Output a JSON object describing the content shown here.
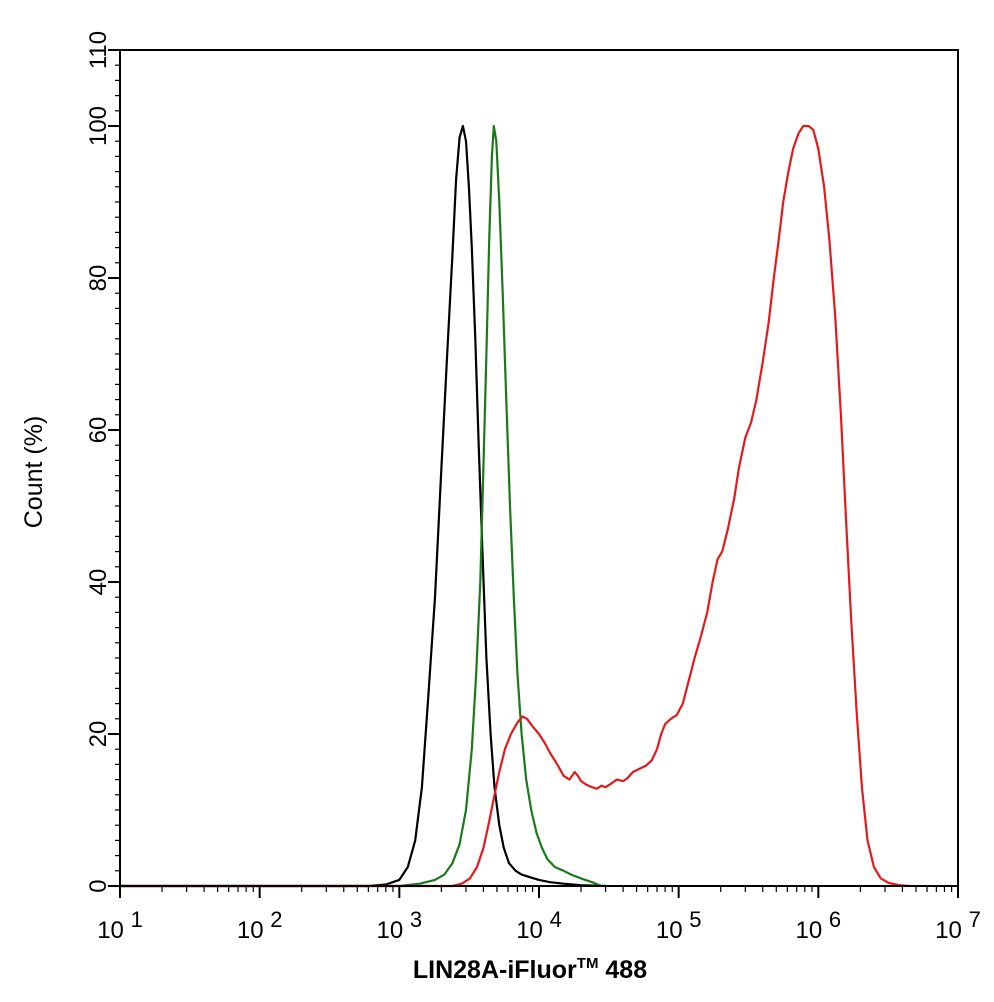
{
  "chart_data": {
    "type": "line",
    "xlabel_main": "LIN28A-iFluor",
    "xlabel_tm": "TM",
    "xlabel_suffix": " 488",
    "ylabel": "Count  (%)",
    "xscale": "log",
    "xlim": [
      10,
      10000000
    ],
    "ylim": [
      0,
      110
    ],
    "y_ticks": [
      0,
      20,
      40,
      60,
      80,
      100,
      110
    ],
    "x_ticks": [
      {
        "base": "10",
        "exp": "1",
        "value": 10
      },
      {
        "base": "10",
        "exp": "2",
        "value": 100
      },
      {
        "base": "10",
        "exp": "3",
        "value": 1000
      },
      {
        "base": "10",
        "exp": "4",
        "value": 10000
      },
      {
        "base": "10",
        "exp": "5",
        "value": 100000
      },
      {
        "base": "10",
        "exp": "6",
        "value": 1000000
      },
      {
        "base": "10",
        "exp": "7",
        "value": 10000000
      }
    ],
    "grid": false,
    "legend": "none",
    "series": [
      {
        "color": "#000000",
        "points": [
          [
            10,
            0
          ],
          [
            600,
            0
          ],
          [
            800,
            0.2
          ],
          [
            1000,
            0.8
          ],
          [
            1150,
            2.5
          ],
          [
            1300,
            6
          ],
          [
            1450,
            13
          ],
          [
            1600,
            24
          ],
          [
            1800,
            38
          ],
          [
            2000,
            55
          ],
          [
            2200,
            70
          ],
          [
            2400,
            83
          ],
          [
            2550,
            93
          ],
          [
            2700,
            98.5
          ],
          [
            2850,
            100
          ],
          [
            3000,
            98
          ],
          [
            3150,
            92
          ],
          [
            3300,
            84
          ],
          [
            3500,
            72
          ],
          [
            3700,
            58
          ],
          [
            3950,
            43
          ],
          [
            4200,
            30
          ],
          [
            4500,
            20
          ],
          [
            4800,
            13
          ],
          [
            5200,
            8
          ],
          [
            5600,
            5
          ],
          [
            6100,
            3
          ],
          [
            6800,
            2
          ],
          [
            7500,
            1.5
          ],
          [
            8500,
            1.2
          ],
          [
            10000,
            0.8
          ],
          [
            12000,
            0.5
          ],
          [
            15000,
            0.3
          ],
          [
            20000,
            0.1
          ],
          [
            30000,
            0
          ]
        ]
      },
      {
        "color": "#1a7a1a",
        "points": [
          [
            10,
            0
          ],
          [
            1000,
            0
          ],
          [
            1400,
            0.3
          ],
          [
            1800,
            0.8
          ],
          [
            2100,
            1.5
          ],
          [
            2400,
            3
          ],
          [
            2700,
            5.5
          ],
          [
            3000,
            10
          ],
          [
            3300,
            18
          ],
          [
            3550,
            28
          ],
          [
            3800,
            40
          ],
          [
            4000,
            55
          ],
          [
            4200,
            70
          ],
          [
            4400,
            85
          ],
          [
            4600,
            96
          ],
          [
            4750,
            100
          ],
          [
            4950,
            98
          ],
          [
            5200,
            90
          ],
          [
            5500,
            78
          ],
          [
            5800,
            65
          ],
          [
            6200,
            50
          ],
          [
            6600,
            38
          ],
          [
            7000,
            28
          ],
          [
            7500,
            20
          ],
          [
            8100,
            14
          ],
          [
            8800,
            10
          ],
          [
            9600,
            7
          ],
          [
            10500,
            5
          ],
          [
            11500,
            3.5
          ],
          [
            13000,
            2.5
          ],
          [
            15000,
            2
          ],
          [
            17000,
            1.5
          ],
          [
            20000,
            1
          ],
          [
            24000,
            0.5
          ],
          [
            28000,
            0
          ]
        ]
      },
      {
        "color": "#e31a1c",
        "points": [
          [
            10,
            0
          ],
          [
            2400,
            0
          ],
          [
            2800,
            0.3
          ],
          [
            3200,
            1
          ],
          [
            3600,
            2.5
          ],
          [
            4000,
            5
          ],
          [
            4400,
            8.5
          ],
          [
            4800,
            12
          ],
          [
            5200,
            15
          ],
          [
            5700,
            18
          ],
          [
            6300,
            20
          ],
          [
            7000,
            21.5
          ],
          [
            7600,
            22.3
          ],
          [
            8200,
            22
          ],
          [
            9000,
            21
          ],
          [
            10000,
            20
          ],
          [
            11000,
            18.8
          ],
          [
            12000,
            17.5
          ],
          [
            13000,
            16.5
          ],
          [
            14000,
            15.5
          ],
          [
            15000,
            14.5
          ],
          [
            16500,
            14
          ],
          [
            18000,
            15
          ],
          [
            19000,
            14.5
          ],
          [
            20000,
            13.8
          ],
          [
            22000,
            13.3
          ],
          [
            24000,
            13
          ],
          [
            26000,
            12.8
          ],
          [
            28000,
            13.2
          ],
          [
            30000,
            13
          ],
          [
            33000,
            13.5
          ],
          [
            36000,
            14
          ],
          [
            40000,
            13.8
          ],
          [
            43000,
            14.2
          ],
          [
            47000,
            15
          ],
          [
            52000,
            15.4
          ],
          [
            58000,
            15.8
          ],
          [
            64000,
            16.5
          ],
          [
            70000,
            18
          ],
          [
            75000,
            20
          ],
          [
            80000,
            21.3
          ],
          [
            88000,
            22
          ],
          [
            97000,
            22.5
          ],
          [
            107000,
            24
          ],
          [
            118000,
            27
          ],
          [
            130000,
            30
          ],
          [
            145000,
            33
          ],
          [
            160000,
            36
          ],
          [
            175000,
            40
          ],
          [
            190000,
            43
          ],
          [
            205000,
            44
          ],
          [
            225000,
            47
          ],
          [
            250000,
            51
          ],
          [
            270000,
            55
          ],
          [
            300000,
            59
          ],
          [
            330000,
            61
          ],
          [
            360000,
            64
          ],
          [
            400000,
            69
          ],
          [
            440000,
            74
          ],
          [
            480000,
            80
          ],
          [
            520000,
            85
          ],
          [
            560000,
            90
          ],
          [
            610000,
            94
          ],
          [
            660000,
            97
          ],
          [
            720000,
            99
          ],
          [
            780000,
            100
          ],
          [
            850000,
            100
          ],
          [
            920000,
            99.5
          ],
          [
            1000000,
            97
          ],
          [
            1100000,
            92
          ],
          [
            1200000,
            85
          ],
          [
            1320000,
            75
          ],
          [
            1450000,
            62
          ],
          [
            1580000,
            48
          ],
          [
            1720000,
            35
          ],
          [
            1880000,
            23
          ],
          [
            2050000,
            13
          ],
          [
            2250000,
            6
          ],
          [
            2500000,
            2.5
          ],
          [
            2800000,
            1
          ],
          [
            3200000,
            0.4
          ],
          [
            3800000,
            0.1
          ],
          [
            4500000,
            0
          ]
        ]
      }
    ]
  }
}
